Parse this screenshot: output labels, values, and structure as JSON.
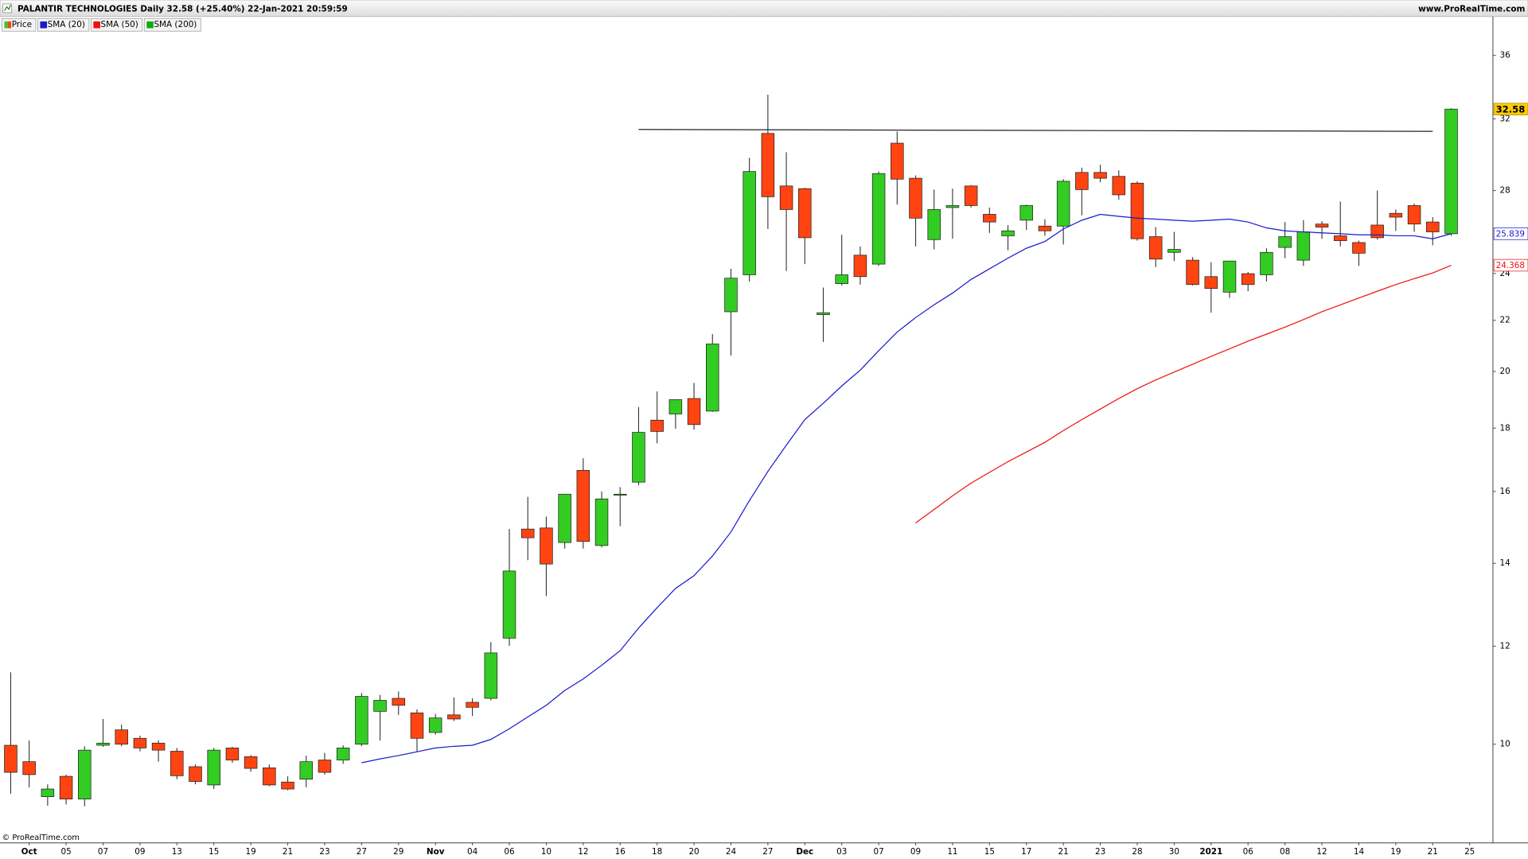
{
  "chart_data": {
    "type": "candlestick",
    "title": "PALANTIR TECHNOLOGIES Daily 32.58 (+25.40%) 22-Jan-2021 20:59:59",
    "source": "www.ProRealTime.com",
    "copyright": "© ProRealTime.com",
    "log_scale": true,
    "grid": false,
    "legend": "top-left",
    "xlim": [
      -0.58,
      80.26
    ],
    "xticks": [
      {
        "value": 1,
        "label": "Oct"
      },
      {
        "value": 3,
        "label": "05"
      },
      {
        "value": 5,
        "label": "07"
      },
      {
        "value": 7,
        "label": "09"
      },
      {
        "value": 9,
        "label": "13"
      },
      {
        "value": 11,
        "label": "15"
      },
      {
        "value": 13,
        "label": "19"
      },
      {
        "value": 15,
        "label": "21"
      },
      {
        "value": 17,
        "label": "23"
      },
      {
        "value": 19,
        "label": "27"
      },
      {
        "value": 21,
        "label": "29"
      },
      {
        "value": 23,
        "label": "Nov"
      },
      {
        "value": 25,
        "label": "04"
      },
      {
        "value": 27,
        "label": "06"
      },
      {
        "value": 29,
        "label": "10"
      },
      {
        "value": 31,
        "label": "12"
      },
      {
        "value": 33,
        "label": "16"
      },
      {
        "value": 35,
        "label": "18"
      },
      {
        "value": 37,
        "label": "20"
      },
      {
        "value": 39,
        "label": "24"
      },
      {
        "value": 41,
        "label": "27"
      },
      {
        "value": 43,
        "label": "Dec"
      },
      {
        "value": 45,
        "label": "03"
      },
      {
        "value": 47,
        "label": "07"
      },
      {
        "value": 49,
        "label": "09"
      },
      {
        "value": 51,
        "label": "11"
      },
      {
        "value": 53,
        "label": "15"
      },
      {
        "value": 55,
        "label": "17"
      },
      {
        "value": 57,
        "label": "21"
      },
      {
        "value": 59,
        "label": "23"
      },
      {
        "value": 61,
        "label": "28"
      },
      {
        "value": 63,
        "label": "30"
      },
      {
        "value": 65,
        "label": "2021"
      },
      {
        "value": 67,
        "label": "06"
      },
      {
        "value": 69,
        "label": "08"
      },
      {
        "value": 71,
        "label": "12"
      },
      {
        "value": 73,
        "label": "14"
      },
      {
        "value": 75,
        "label": "19"
      },
      {
        "value": 77,
        "label": "21"
      },
      {
        "value": 79,
        "label": "25"
      }
    ],
    "ylim": [
      8.33,
      38.63
    ],
    "yticks": [
      10,
      12,
      14,
      16,
      18,
      20,
      22,
      24,
      28,
      32,
      36
    ],
    "series": [
      {
        "name": "Price",
        "up_color": "#33cc22",
        "down_color": "#ff4411",
        "open": [
          9.98,
          9.68,
          9.07,
          9.42,
          9.03,
          9.98,
          10.27,
          10.11,
          10.02,
          9.87,
          9.59,
          9.27,
          9.93,
          9.77,
          9.57,
          9.32,
          9.37,
          9.71,
          9.71,
          10.0,
          10.63,
          10.89,
          10.6,
          10.22,
          10.56,
          10.81,
          10.89,
          12.18,
          14.92,
          14.95,
          14.55,
          16.64,
          14.47,
          15.89,
          16.28,
          18.27,
          18.48,
          19.02,
          18.58,
          22.35,
          23.94,
          31.14,
          28.24,
          28.1,
          22.23,
          23.55,
          24.83,
          24.42,
          30.58,
          28.65,
          25.56,
          27.13,
          28.24,
          26.79,
          25.74,
          26.5,
          26.21,
          26.21,
          28.96,
          28.96,
          28.75,
          28.39,
          25.7,
          24.96,
          24.6,
          23.86,
          23.18,
          23.99,
          23.94,
          25.19,
          24.6,
          26.31,
          25.74,
          25.42,
          26.26,
          26.84,
          27.23,
          26.41,
          25.84
        ],
        "high": [
          11.43,
          10.07,
          9.28,
          9.45,
          9.96,
          10.48,
          10.37,
          10.16,
          10.07,
          9.93,
          9.63,
          9.93,
          9.95,
          9.8,
          9.63,
          9.42,
          9.79,
          9.84,
          9.98,
          11.0,
          10.96,
          11.03,
          10.67,
          10.58,
          10.91,
          10.89,
          12.09,
          14.92,
          15.84,
          15.27,
          15.92,
          17.02,
          16.0,
          16.13,
          18.72,
          19.27,
          18.98,
          19.58,
          21.44,
          24.21,
          29.76,
          33.47,
          30.07,
          28.15,
          23.38,
          25.79,
          25.24,
          29.01,
          31.25,
          28.8,
          28.05,
          28.1,
          28.29,
          27.13,
          26.26,
          27.28,
          26.55,
          28.6,
          29.22,
          29.38,
          29.07,
          28.49,
          26.16,
          25.93,
          24.74,
          24.51,
          24.56,
          24.07,
          25.15,
          26.41,
          26.5,
          26.45,
          27.43,
          25.51,
          28.0,
          27.03,
          27.33,
          26.65,
          32.64
        ],
        "low": [
          9.12,
          9.23,
          8.92,
          8.94,
          8.91,
          9.95,
          9.96,
          9.87,
          9.68,
          9.37,
          9.28,
          9.2,
          9.66,
          9.5,
          9.25,
          9.18,
          9.23,
          9.45,
          9.64,
          9.96,
          10.07,
          10.56,
          9.86,
          10.18,
          10.44,
          10.54,
          10.85,
          12.01,
          14.08,
          13.17,
          14.39,
          14.39,
          14.42,
          15.0,
          16.19,
          17.5,
          17.98,
          17.95,
          18.55,
          20.6,
          23.64,
          26.07,
          24.11,
          24.42,
          21.13,
          23.47,
          23.51,
          24.34,
          27.28,
          25.24,
          25.1,
          25.6,
          27.13,
          25.88,
          25.06,
          26.02,
          25.74,
          25.33,
          26.74,
          28.44,
          27.53,
          25.51,
          24.29,
          24.56,
          23.47,
          22.31,
          22.93,
          23.22,
          23.64,
          24.69,
          24.34,
          25.6,
          25.24,
          24.34,
          25.56,
          25.98,
          25.93,
          25.29,
          25.74
        ],
        "close": [
          9.49,
          9.45,
          9.2,
          9.03,
          9.89,
          10.02,
          10.0,
          9.93,
          9.89,
          9.43,
          9.33,
          9.89,
          9.71,
          9.56,
          9.27,
          9.2,
          9.68,
          9.49,
          9.93,
          10.93,
          10.85,
          10.75,
          10.11,
          10.5,
          10.48,
          10.71,
          11.85,
          13.8,
          14.68,
          13.98,
          15.92,
          14.58,
          15.78,
          15.92,
          17.86,
          17.89,
          18.98,
          18.12,
          21.05,
          23.79,
          29.01,
          27.68,
          27.03,
          25.65,
          22.31,
          23.94,
          23.86,
          28.9,
          28.6,
          26.6,
          27.03,
          27.23,
          27.23,
          26.41,
          25.98,
          27.23,
          25.98,
          28.49,
          28.05,
          28.65,
          27.78,
          25.6,
          24.65,
          25.1,
          23.51,
          23.34,
          24.56,
          23.51,
          24.96,
          25.7,
          25.93,
          26.16,
          25.51,
          24.92,
          25.65,
          26.65,
          26.31,
          25.93,
          32.58
        ]
      },
      {
        "name": "SMA (20)",
        "color": "#1a1acc",
        "values": [
          null,
          null,
          null,
          null,
          null,
          null,
          null,
          null,
          null,
          null,
          null,
          null,
          null,
          null,
          null,
          null,
          null,
          null,
          null,
          9.66,
          9.73,
          9.79,
          9.86,
          9.93,
          9.96,
          9.98,
          10.09,
          10.29,
          10.52,
          10.75,
          11.05,
          11.29,
          11.58,
          11.9,
          12.41,
          12.89,
          13.36,
          13.68,
          14.19,
          14.84,
          15.73,
          16.61,
          17.44,
          18.29,
          18.85,
          19.47,
          20.05,
          20.79,
          21.52,
          22.11,
          22.64,
          23.14,
          23.73,
          24.21,
          24.69,
          25.15,
          25.47,
          26.07,
          26.5,
          26.79,
          26.69,
          26.6,
          26.55,
          26.5,
          26.45,
          26.5,
          26.55,
          26.41,
          26.12,
          25.98,
          25.93,
          25.88,
          25.84,
          25.79,
          25.79,
          25.74,
          25.74,
          25.6,
          25.839
        ]
      },
      {
        "name": "SMA (50)",
        "color": "#ee1111",
        "values": [
          null,
          null,
          null,
          null,
          null,
          null,
          null,
          null,
          null,
          null,
          null,
          null,
          null,
          null,
          null,
          null,
          null,
          null,
          null,
          null,
          null,
          null,
          null,
          null,
          null,
          null,
          null,
          null,
          null,
          null,
          null,
          null,
          null,
          null,
          null,
          null,
          null,
          null,
          null,
          null,
          null,
          null,
          null,
          null,
          null,
          null,
          null,
          null,
          null,
          15.09,
          15.47,
          15.87,
          16.25,
          16.58,
          16.91,
          17.22,
          17.53,
          17.92,
          18.29,
          18.65,
          19.02,
          19.37,
          19.69,
          19.98,
          20.27,
          20.57,
          20.86,
          21.16,
          21.44,
          21.72,
          22.03,
          22.35,
          22.64,
          22.93,
          23.22,
          23.51,
          23.77,
          24.02,
          24.368
        ]
      },
      {
        "name": "SMA (200)",
        "color": "#11aa11"
      }
    ],
    "lines": [
      {
        "color": "#222222",
        "x": [
          34,
          77
        ],
        "y": [
          31.37,
          31.26
        ]
      }
    ]
  }
}
